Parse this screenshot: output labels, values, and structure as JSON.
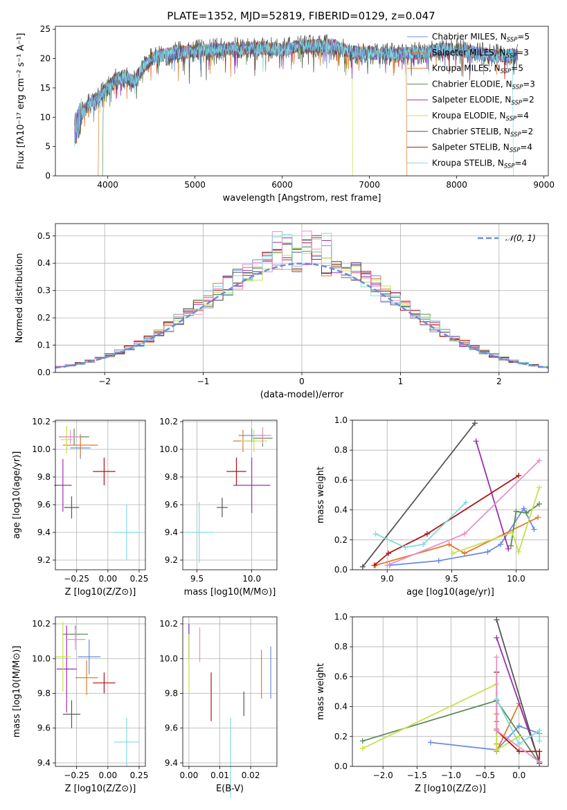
{
  "colors": [
    "#6a8be0",
    "#de7a2a",
    "#5a8a5a",
    "#9a2fb0",
    "#c8e04a",
    "#555555",
    "#b01010",
    "#e890c8",
    "#7fdcdc"
  ],
  "legend_colors": [
    "#6a8be0",
    "#de7a2a",
    "#de7a2a",
    "#5a8a5a",
    "#9a2fb0",
    "#c8e04a",
    "#555555",
    "#b01010",
    "#7fdcdc"
  ],
  "chart_data": [
    {
      "type": "line",
      "title": "PLATE=1352, MJD=52819, FIBERID=0129, z=0.047",
      "xlabel": "wavelength [Angstrom, rest frame]",
      "ylabel": "Flux [fλ10⁻¹⁷ erg cm⁻² s⁻¹ A⁻¹]",
      "xlim": [
        3400,
        9050
      ],
      "ylim": [
        0,
        25.5
      ],
      "xticks": [
        4000,
        5000,
        6000,
        7000,
        8000,
        9000
      ],
      "yticks": [
        0,
        5,
        10,
        15,
        20,
        25
      ],
      "grid": false,
      "legend_position": "upper right",
      "legend": [
        "Chabrier MILES, N_SSP=5",
        "Salpeter MILES, N_SSP=3",
        "Kroupa MILES, N_SSP=5",
        "Chabrier ELODIE, N_SSP=3",
        "Salpeter ELODIE, N_SSP=2",
        "Kroupa ELODIE, N_SSP=4",
        "Chabrier STELIB, N_SSP=2",
        "Salpeter STELIB, N_SSP=4",
        "Kroupa STELIB, N_SSP=4"
      ],
      "legend_text": [
        {
          "pre": "Chabrier MILES, N",
          "sub": "SSP",
          "post": "=5"
        },
        {
          "pre": "Salpeter MILES, N",
          "sub": "SSP",
          "post": "=3"
        },
        {
          "pre": "Kroupa MILES, N",
          "sub": "SSP",
          "post": "=5"
        },
        {
          "pre": "Chabrier ELODIE, N",
          "sub": "SSP",
          "post": "=3"
        },
        {
          "pre": "Salpeter ELODIE, N",
          "sub": "SSP",
          "post": "=2"
        },
        {
          "pre": "Kroupa ELODIE, N",
          "sub": "SSP",
          "post": "=4"
        },
        {
          "pre": "Chabrier STELIB, N",
          "sub": "SSP",
          "post": "=2"
        },
        {
          "pre": "Salpeter STELIB, N",
          "sub": "SSP",
          "post": "=4"
        },
        {
          "pre": "Kroupa STELIB, N",
          "sub": "SSP",
          "post": "=4"
        }
      ],
      "continuum": {
        "x": [
          3620,
          3700,
          3800,
          3900,
          4000,
          4100,
          4200,
          4300,
          4400,
          4500,
          4600,
          4800,
          5000,
          5200,
          5400,
          5600,
          5800,
          6000,
          6200,
          6400,
          6600,
          6800,
          7000,
          7200,
          7400,
          7600,
          7800,
          8000,
          8200,
          8400,
          8700
        ],
        "y": [
          7.5,
          10.5,
          12.5,
          13.5,
          15,
          16.5,
          17,
          16,
          18.5,
          20,
          20.5,
          21,
          21.3,
          21.5,
          21.7,
          21.8,
          21.8,
          21.5,
          22,
          22.2,
          22.2,
          21,
          21,
          20.8,
          20.8,
          21,
          21.5,
          21.5,
          21,
          20.5,
          20.5
        ]
      },
      "cutoffs": [
        {
          "series": "Salpeter MILES",
          "end": 7420
        },
        {
          "series": "Kroupa ELODIE",
          "end": 6800
        },
        {
          "series": "Chabrier ELODIE",
          "start": 3950
        },
        {
          "series": "Kroupa MILES",
          "start": 3900
        },
        {
          "series": "Kroupa STELIB",
          "end": 8640
        }
      ]
    },
    {
      "type": "histogram",
      "xlabel": "(data-model)/error",
      "ylabel": "Normed distribution",
      "xlim": [
        -2.5,
        2.5
      ],
      "ylim": [
        0,
        0.545
      ],
      "xticks": [
        -2,
        -1,
        0,
        1,
        2
      ],
      "yticks": [
        0.0,
        0.1,
        0.2,
        0.3,
        0.4,
        0.5
      ],
      "grid": true,
      "bin_width": 0.1,
      "legend": [
        "𝒩(0, 1)"
      ],
      "reference_curve": {
        "name": "𝒩(0, 1)",
        "color": "#6a8be0",
        "style": "dashed"
      }
    },
    {
      "type": "scatter",
      "xlabel": "Z [log10(Z/Z⊙)]",
      "ylabel": "age [log10(age/yr)]",
      "xlim": [
        -0.42,
        0.3
      ],
      "ylim": [
        9.13,
        10.21
      ],
      "xticks": [
        -0.25,
        0.0,
        0.25
      ],
      "xtick_labels": [
        "−0.25",
        "0.00",
        "0.25"
      ],
      "yticks": [
        9.2,
        9.4,
        9.6,
        9.8,
        10.0,
        10.2
      ],
      "grid": true,
      "points": [
        {
          "x": -0.22,
          "y": 10.01,
          "xerr": 0.08,
          "yerr": 0.08
        },
        {
          "x": -0.22,
          "y": 10.03,
          "xerr": 0.14,
          "yerr": 0.08
        },
        {
          "x": -0.27,
          "y": 10.09,
          "xerr": 0.12,
          "yerr": 0.06
        },
        {
          "x": -0.36,
          "y": 9.74,
          "xerr": 0.07,
          "yerr": 0.19
        },
        {
          "x": -0.33,
          "y": 10.07,
          "xerr": 0.05,
          "yerr": 0.1
        },
        {
          "x": -0.29,
          "y": 9.58,
          "xerr": 0.06,
          "yerr": 0.08
        },
        {
          "x": -0.03,
          "y": 9.84,
          "xerr": 0.09,
          "yerr": 0.1
        },
        {
          "x": -0.3,
          "y": 10.09,
          "xerr": 0.08,
          "yerr": 0.05
        },
        {
          "x": 0.15,
          "y": 9.4,
          "xerr": 0.1,
          "yerr": 0.2
        }
      ]
    },
    {
      "type": "scatter",
      "xlabel": "mass [log10(M/M⊙)]",
      "ylabel": "",
      "xlim": [
        9.37,
        10.23
      ],
      "ylim": [
        9.13,
        10.21
      ],
      "xticks": [
        9.5,
        10.0
      ],
      "yticks": [
        9.2,
        9.4,
        9.6,
        9.8,
        10.0,
        10.2
      ],
      "grid": true,
      "points": [
        {
          "x": 10.0,
          "y": 10.1,
          "xerr": 0.12,
          "yerr": 0.05
        },
        {
          "x": 9.92,
          "y": 10.06,
          "xerr": 0.09,
          "yerr": 0.08
        },
        {
          "x": 10.1,
          "y": 10.08,
          "xerr": 0.09,
          "yerr": 0.06
        },
        {
          "x": 10.0,
          "y": 9.74,
          "xerr": 0.17,
          "yerr": 0.2
        },
        {
          "x": 10.02,
          "y": 10.06,
          "xerr": 0.12,
          "yerr": 0.08
        },
        {
          "x": 9.73,
          "y": 9.58,
          "xerr": 0.05,
          "yerr": 0.07
        },
        {
          "x": 9.86,
          "y": 9.84,
          "xerr": 0.09,
          "yerr": 0.1
        },
        {
          "x": 10.1,
          "y": 10.1,
          "xerr": 0.08,
          "yerr": 0.06
        },
        {
          "x": 9.52,
          "y": 9.4,
          "xerr": 0.13,
          "yerr": 0.22
        }
      ]
    },
    {
      "type": "line",
      "xlabel": "age [log10(age/yr)]",
      "ylabel": "mass weight",
      "xlim": [
        8.73,
        10.25
      ],
      "ylim": [
        0.0,
        1.0
      ],
      "xticks": [
        9.0,
        9.5,
        10.0
      ],
      "yticks": [
        0.0,
        0.2,
        0.4,
        0.6,
        0.8,
        1.0
      ],
      "grid": true,
      "series": [
        {
          "x": [
            9.02,
            9.4,
            9.78,
            9.88,
            10.06,
            10.14
          ],
          "y": [
            0.03,
            0.06,
            0.12,
            0.17,
            0.41,
            0.27
          ]
        },
        {
          "x": [
            8.91,
            9.48,
            9.6,
            10.17
          ],
          "y": [
            0.03,
            0.17,
            0.11,
            0.35
          ]
        },
        {
          "x": [
            9.96,
            10.0,
            10.08,
            10.18
          ],
          "y": [
            0.16,
            0.39,
            0.38,
            0.44
          ]
        },
        {
          "x": [
            9.69,
            9.94
          ],
          "y": [
            0.86,
            0.14
          ]
        },
        {
          "x": [
            9.51,
            9.97,
            10.02,
            10.18
          ],
          "y": [
            0.11,
            0.25,
            0.12,
            0.55
          ]
        },
        {
          "x": [
            8.81,
            9.68
          ],
          "y": [
            0.02,
            0.98
          ]
        },
        {
          "x": [
            8.9,
            9.01,
            9.31,
            10.02
          ],
          "y": [
            0.03,
            0.11,
            0.24,
            0.63
          ]
        },
        {
          "x": [
            9.0,
            9.6,
            10.18
          ],
          "y": [
            0.03,
            0.24,
            0.73
          ]
        },
        {
          "x": [
            8.91,
            9.14,
            9.28,
            9.61
          ],
          "y": [
            0.24,
            0.15,
            0.17,
            0.45
          ]
        }
      ]
    },
    {
      "type": "scatter",
      "xlabel": "Z [log10(Z/Z⊙)]",
      "ylabel": "mass [log10(M/M⊙)]",
      "xlim": [
        -0.42,
        0.3
      ],
      "ylim": [
        9.38,
        10.24
      ],
      "xticks": [
        -0.25,
        0.0,
        0.25
      ],
      "xtick_labels": [
        "−0.25",
        "0.00",
        "0.25"
      ],
      "yticks": [
        9.4,
        9.6,
        9.8,
        10.0,
        10.2
      ],
      "grid": true,
      "points": [
        {
          "x": -0.15,
          "y": 10.01,
          "xerr": 0.09,
          "yerr": 0.1
        },
        {
          "x": -0.17,
          "y": 9.89,
          "xerr": 0.09,
          "yerr": 0.1
        },
        {
          "x": -0.26,
          "y": 10.14,
          "xerr": 0.1,
          "yerr": 0.05
        },
        {
          "x": -0.33,
          "y": 9.94,
          "xerr": 0.08,
          "yerr": 0.25
        },
        {
          "x": -0.36,
          "y": 10.01,
          "xerr": 0.06,
          "yerr": 0.2
        },
        {
          "x": -0.29,
          "y": 9.68,
          "xerr": 0.07,
          "yerr": 0.08
        },
        {
          "x": -0.03,
          "y": 9.86,
          "xerr": 0.09,
          "yerr": 0.06
        },
        {
          "x": -0.26,
          "y": 10.11,
          "xerr": 0.08,
          "yerr": 0.06
        },
        {
          "x": 0.15,
          "y": 9.52,
          "xerr": 0.1,
          "yerr": 0.14
        }
      ]
    },
    {
      "type": "scatter",
      "xlabel": "E(B-V)",
      "ylabel": "",
      "xlim": [
        -0.002,
        0.0285
      ],
      "ylim": [
        9.38,
        10.24
      ],
      "xticks": [
        0.0,
        0.01,
        0.02
      ],
      "xtick_labels": [
        "0.00",
        "0.01",
        "0.02"
      ],
      "yticks": [
        9.4,
        9.6,
        9.8,
        10.0,
        10.2
      ],
      "grid": true,
      "points": [
        {
          "x": 0.0265,
          "y": 9.92,
          "xerr": 0.0,
          "yerr": 0.15
        },
        {
          "x": 0.0235,
          "y": 9.91,
          "xerr": 0.0,
          "yerr": 0.14
        },
        {
          "x": 0.0,
          "y": 10.1,
          "xerr": 0.0,
          "yerr": 0.1
        },
        {
          "x": 0.0,
          "y": 10.1,
          "xerr": 0.0,
          "yerr": 0.1
        },
        {
          "x": 0.0,
          "y": 9.97,
          "xerr": 0.0,
          "yerr": 0.17
        },
        {
          "x": 0.0178,
          "y": 9.74,
          "xerr": 0.0,
          "yerr": 0.07
        },
        {
          "x": 0.0072,
          "y": 9.78,
          "xerr": 0.0,
          "yerr": 0.14
        },
        {
          "x": 0.0035,
          "y": 10.08,
          "xerr": 0.0,
          "yerr": 0.1
        },
        {
          "x": 0.0135,
          "y": 9.43,
          "xerr": 0.0,
          "yerr": 0.23
        }
      ]
    },
    {
      "type": "line",
      "xlabel": "Z [log10(Z/Z⊙)]",
      "ylabel": "mass weight",
      "xlim": [
        -2.45,
        0.43
      ],
      "ylim": [
        0.0,
        1.0
      ],
      "xticks": [
        -2.0,
        -1.5,
        -1.0,
        -0.5,
        0.0
      ],
      "xtick_labels": [
        "−2.0",
        "−1.5",
        "−1.0",
        "−0.5",
        "0.0"
      ],
      "yticks": [
        0.0,
        0.2,
        0.4,
        0.6,
        0.8,
        1.0
      ],
      "grid": true,
      "series": [
        {
          "x": [
            -1.3,
            -0.33,
            0.0,
            0.3
          ],
          "y": [
            0.16,
            0.11,
            0.27,
            0.22
          ]
        },
        {
          "x": [
            -0.33,
            -0.33,
            -0.33,
            -0.33,
            -0.33,
            0.0,
            0.3
          ],
          "y": [
            0.35,
            0.3,
            0.25,
            0.15,
            0.1,
            0.42,
            0.03
          ]
        },
        {
          "x": [
            -2.3,
            -0.33,
            0.3
          ],
          "y": [
            0.17,
            0.44,
            0.02
          ]
        },
        {
          "x": [
            -0.33,
            0.3
          ],
          "y": [
            0.86,
            0.03
          ]
        },
        {
          "x": [
            -2.3,
            -0.33,
            -0.33,
            0.0
          ],
          "y": [
            0.12,
            0.55,
            0.11,
            0.2
          ]
        },
        {
          "x": [
            -0.33,
            0.3
          ],
          "y": [
            0.98,
            0.02
          ]
        },
        {
          "x": [
            -0.33,
            -0.33,
            0.0,
            0.3,
            0.3
          ],
          "y": [
            0.63,
            0.24,
            0.1,
            0.1,
            0.03
          ]
        },
        {
          "x": [
            -0.33,
            -0.33,
            0.3
          ],
          "y": [
            0.73,
            0.24,
            0.03
          ]
        },
        {
          "x": [
            -0.33,
            0.0,
            0.3,
            0.3
          ],
          "y": [
            0.45,
            0.15,
            0.24,
            0.17
          ]
        }
      ]
    }
  ]
}
